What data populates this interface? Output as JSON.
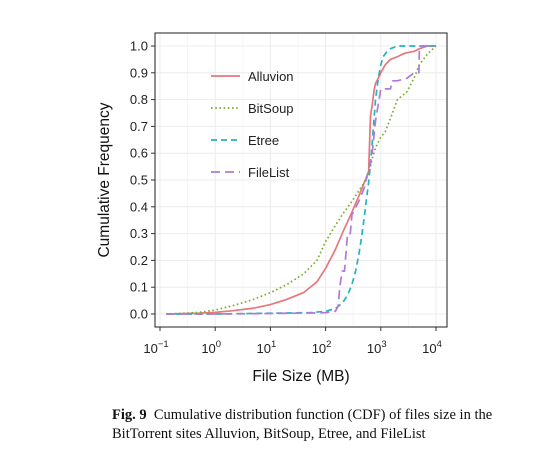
{
  "chart_data": {
    "type": "line",
    "title": "",
    "xlabel": "File Size (MB)",
    "ylabel": "Cumulative Frequency",
    "x_scale": "log10",
    "xlim": [
      0.1,
      10000
    ],
    "ylim": [
      0.0,
      1.0
    ],
    "x_ticks": [
      {
        "value": 0.1,
        "base": "10",
        "exp": "−1"
      },
      {
        "value": 1,
        "base": "10",
        "exp": "0"
      },
      {
        "value": 10,
        "base": "10",
        "exp": "1"
      },
      {
        "value": 100,
        "base": "10",
        "exp": "2"
      },
      {
        "value": 1000,
        "base": "10",
        "exp": "3"
      },
      {
        "value": 10000,
        "base": "10",
        "exp": "4"
      }
    ],
    "y_ticks": [
      {
        "value": 0.0,
        "label": "0.0"
      },
      {
        "value": 0.1,
        "label": "0.1"
      },
      {
        "value": 0.2,
        "label": "0.2"
      },
      {
        "value": 0.3,
        "label": "0.3"
      },
      {
        "value": 0.4,
        "label": "0.4"
      },
      {
        "value": 0.5,
        "label": "0.5"
      },
      {
        "value": 0.6,
        "label": "0.6"
      },
      {
        "value": 0.7,
        "label": "0.7"
      },
      {
        "value": 0.8,
        "label": "0.8"
      },
      {
        "value": 0.9,
        "label": "0.9"
      },
      {
        "value": 1.0,
        "label": "1.0"
      }
    ],
    "grid": true,
    "legend_position": "top-left",
    "series": [
      {
        "name": "Alluvion",
        "color": "#e8767b",
        "dash": "solid",
        "x": [
          0.13,
          0.5,
          1,
          2,
          5,
          10,
          20,
          40,
          70,
          100,
          150,
          200,
          300,
          400,
          500,
          600,
          650,
          700,
          750,
          800,
          900,
          1000,
          1200,
          1500,
          2000,
          2500,
          3000,
          4000,
          5000,
          7000,
          10000
        ],
        "y": [
          0.0,
          0.003,
          0.006,
          0.012,
          0.022,
          0.035,
          0.055,
          0.08,
          0.12,
          0.17,
          0.24,
          0.3,
          0.38,
          0.44,
          0.49,
          0.53,
          0.74,
          0.78,
          0.83,
          0.86,
          0.88,
          0.9,
          0.93,
          0.95,
          0.96,
          0.97,
          0.975,
          0.98,
          0.99,
          1.0,
          1.0
        ]
      },
      {
        "name": "BitSoup",
        "color": "#7aab2a",
        "dash": "dotted",
        "x": [
          0.13,
          0.3,
          0.5,
          1,
          2,
          5,
          10,
          20,
          40,
          70,
          100,
          150,
          200,
          300,
          400,
          500,
          600,
          700,
          800,
          1000,
          1200,
          1500,
          2000,
          3000,
          4000,
          5000,
          7000,
          10000
        ],
        "y": [
          0.0,
          0.003,
          0.006,
          0.015,
          0.03,
          0.055,
          0.08,
          0.11,
          0.15,
          0.2,
          0.27,
          0.33,
          0.37,
          0.42,
          0.46,
          0.49,
          0.52,
          0.58,
          0.62,
          0.66,
          0.68,
          0.73,
          0.8,
          0.83,
          0.88,
          0.93,
          0.97,
          1.0
        ]
      },
      {
        "name": "Etree",
        "color": "#22b5bf",
        "dash": "dashed",
        "x": [
          0.13,
          1,
          10,
          50,
          100,
          150,
          200,
          250,
          300,
          350,
          400,
          450,
          500,
          550,
          600,
          650,
          700,
          750,
          800,
          900,
          1000,
          1100,
          1300,
          1500,
          2000,
          3000,
          10000
        ],
        "y": [
          0.0,
          0.0,
          0.003,
          0.005,
          0.01,
          0.02,
          0.04,
          0.07,
          0.11,
          0.16,
          0.22,
          0.29,
          0.36,
          0.43,
          0.49,
          0.56,
          0.64,
          0.72,
          0.8,
          0.88,
          0.93,
          0.96,
          0.98,
          0.99,
          1.0,
          1.0,
          1.0
        ]
      },
      {
        "name": "FileList",
        "color": "#b07ad6",
        "dash": "longdash",
        "x": [
          0.13,
          1,
          10,
          100,
          150,
          170,
          180,
          200,
          220,
          250,
          280,
          300,
          400,
          500,
          600,
          700,
          800,
          1000,
          1200,
          1500,
          1600,
          2000,
          3000,
          4000,
          4900,
          5000,
          10000
        ],
        "y": [
          0.0,
          0.0,
          0.002,
          0.005,
          0.01,
          0.03,
          0.1,
          0.16,
          0.16,
          0.3,
          0.3,
          0.37,
          0.42,
          0.47,
          0.54,
          0.6,
          0.72,
          0.84,
          0.84,
          0.84,
          0.87,
          0.87,
          0.88,
          0.9,
          0.9,
          1.0,
          1.0
        ]
      }
    ]
  },
  "caption": {
    "label": "Fig. 9",
    "text": "Cumulative distribution function (CDF) of files size in the BitTorrent sites Alluvion, BitSoup, Etree, and FileList"
  }
}
